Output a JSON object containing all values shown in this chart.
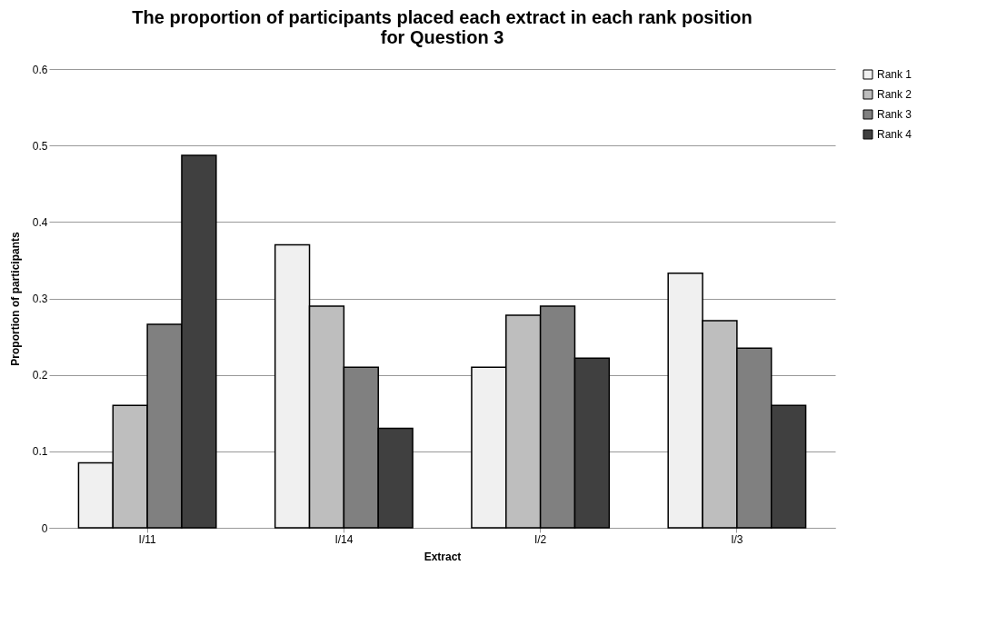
{
  "chart_data": {
    "type": "bar",
    "title": [
      "The proportion of participants placed each extract in each rank position",
      "for Question 3"
    ],
    "xlabel": "Extract",
    "ylabel": "Proportion of participants",
    "categories": [
      "I/11",
      "I/14",
      "I/2",
      "I/3"
    ],
    "series": [
      {
        "name": "Rank 1",
        "color": "#f0f0f0",
        "values": [
          0.085,
          0.37,
          0.21,
          0.333
        ]
      },
      {
        "name": "Rank 2",
        "color": "#bebebe",
        "values": [
          0.16,
          0.29,
          0.278,
          0.271
        ]
      },
      {
        "name": "Rank 3",
        "color": "#808080",
        "values": [
          0.266,
          0.21,
          0.29,
          0.235
        ]
      },
      {
        "name": "Rank 4",
        "color": "#404040",
        "values": [
          0.487,
          0.13,
          0.222,
          0.16
        ]
      }
    ],
    "ylim": [
      0,
      0.6
    ],
    "yticks": [
      0,
      0.1,
      0.2,
      0.3,
      0.4,
      0.5,
      0.6
    ],
    "grid": "y",
    "legend": "right"
  }
}
